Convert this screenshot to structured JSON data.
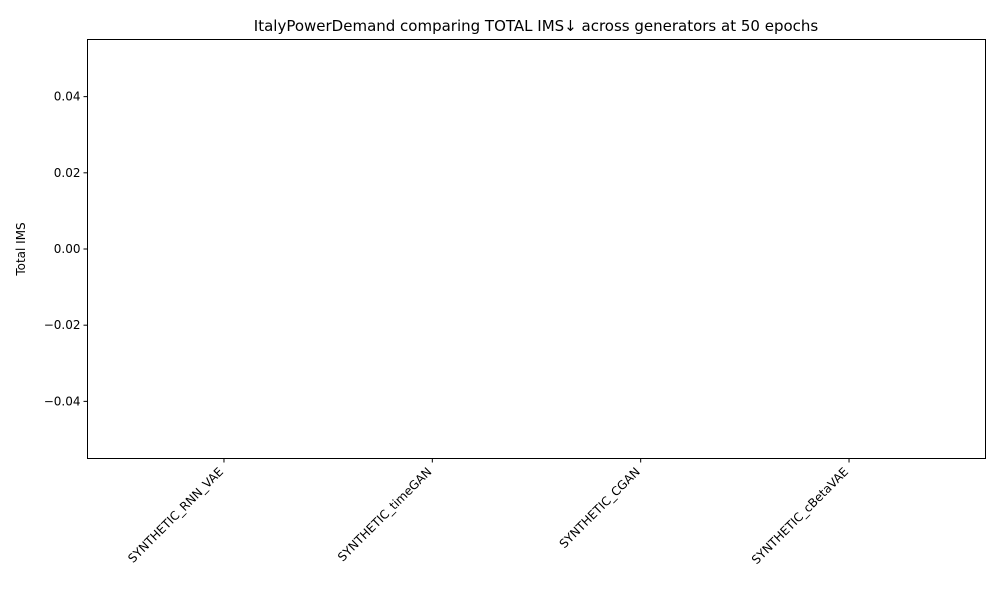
{
  "chart_data": {
    "type": "bar",
    "title": "ItalyPowerDemand comparing TOTAL IMS↓ across generators at 50 epochs",
    "xlabel": "",
    "ylabel": "Total IMS",
    "categories": [
      "SYNTHETIC_RNN_VAE",
      "SYNTHETIC_timeGAN",
      "SYNTHETIC_CGAN",
      "SYNTHETIC_cBetaVAE"
    ],
    "values": [
      null,
      null,
      null,
      null
    ],
    "ylim": [
      -0.055,
      0.055
    ],
    "yticks": [
      0.04,
      0.02,
      0.0,
      -0.02,
      -0.04
    ],
    "ytick_labels": [
      "0.04",
      "0.02",
      "0.00",
      "−0.02",
      "−0.04"
    ],
    "grid": false,
    "legend": "none"
  }
}
